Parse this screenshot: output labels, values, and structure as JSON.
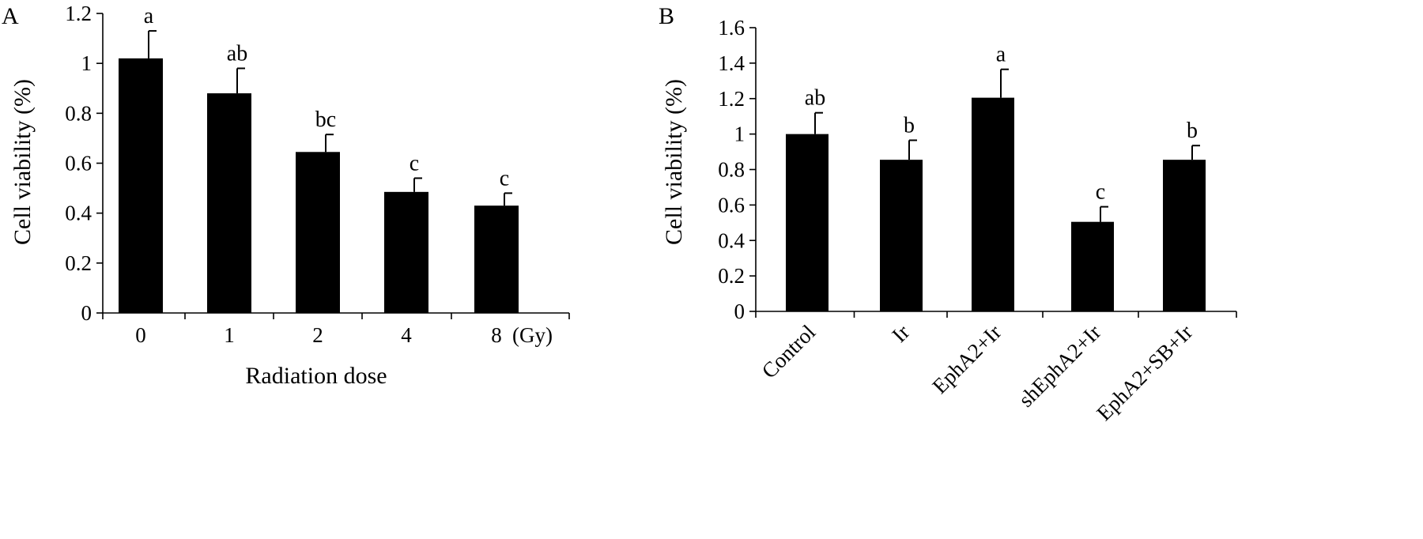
{
  "chart_data": [
    {
      "type": "bar",
      "panel_label": "A",
      "categories": [
        "0",
        "1",
        "2",
        "4",
        "8"
      ],
      "category_unit": "(Gy)",
      "values": [
        1.02,
        0.88,
        0.645,
        0.485,
        0.43
      ],
      "errors": [
        0.11,
        0.1,
        0.07,
        0.055,
        0.05
      ],
      "significance": [
        "a",
        "ab",
        "bc",
        "c",
        "c"
      ],
      "title": "",
      "xlabel": "Radiation dose",
      "ylabel": "Cell viability (%)",
      "ylim": [
        0,
        1.2
      ],
      "yticks": [
        "0",
        "0.2",
        "0.4",
        "0.6",
        "0.8",
        "1",
        "1.2"
      ],
      "grid": false,
      "bar_color": "#000000"
    },
    {
      "type": "bar",
      "panel_label": "B",
      "categories": [
        "Control",
        "Ir",
        "EphA2+Ir",
        "shEphA2+Ir",
        "EphA2+SB+Ir"
      ],
      "values": [
        1.0,
        0.855,
        1.205,
        0.505,
        0.855
      ],
      "errors": [
        0.12,
        0.11,
        0.16,
        0.085,
        0.08
      ],
      "significance": [
        "ab",
        "b",
        "a",
        "c",
        "b"
      ],
      "title": "",
      "xlabel": "",
      "ylabel": "Cell viability (%)",
      "ylim": [
        0,
        1.6
      ],
      "yticks": [
        "0",
        "0.2",
        "0.4",
        "0.6",
        "0.8",
        "1",
        "1.2",
        "1.4",
        "1.6"
      ],
      "grid": false,
      "bar_color": "#000000"
    }
  ]
}
